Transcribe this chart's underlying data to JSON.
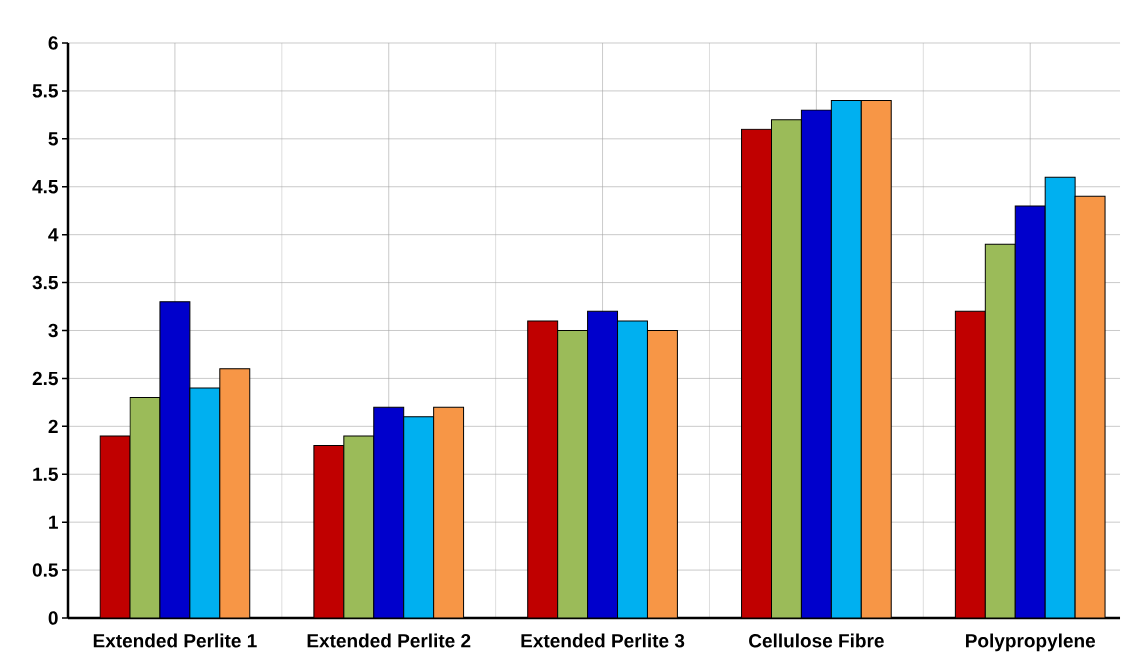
{
  "chart_data": {
    "type": "bar",
    "categories": [
      "Extended Perlite 1",
      "Extended Perlite 2",
      "Extended Perlite 3",
      "Cellulose Fibre",
      "Polypropylene"
    ],
    "series": [
      {
        "color": "#c00000",
        "values": [
          1.9,
          1.8,
          3.1,
          5.1,
          3.2
        ]
      },
      {
        "color": "#9bbb59",
        "values": [
          2.3,
          1.9,
          3.0,
          5.2,
          3.9
        ]
      },
      {
        "color": "#0000cc",
        "values": [
          3.3,
          2.2,
          3.2,
          5.3,
          4.3
        ]
      },
      {
        "color": "#00b0f0",
        "values": [
          2.4,
          2.1,
          3.1,
          5.4,
          4.6
        ]
      },
      {
        "color": "#f79646",
        "values": [
          2.6,
          2.2,
          3.0,
          5.4,
          4.4
        ]
      }
    ],
    "ylim": [
      0,
      6
    ],
    "yticks": [
      0,
      0.5,
      1,
      1.5,
      2,
      2.5,
      3,
      3.5,
      4,
      4.5,
      5,
      5.5,
      6
    ],
    "grid": true
  }
}
